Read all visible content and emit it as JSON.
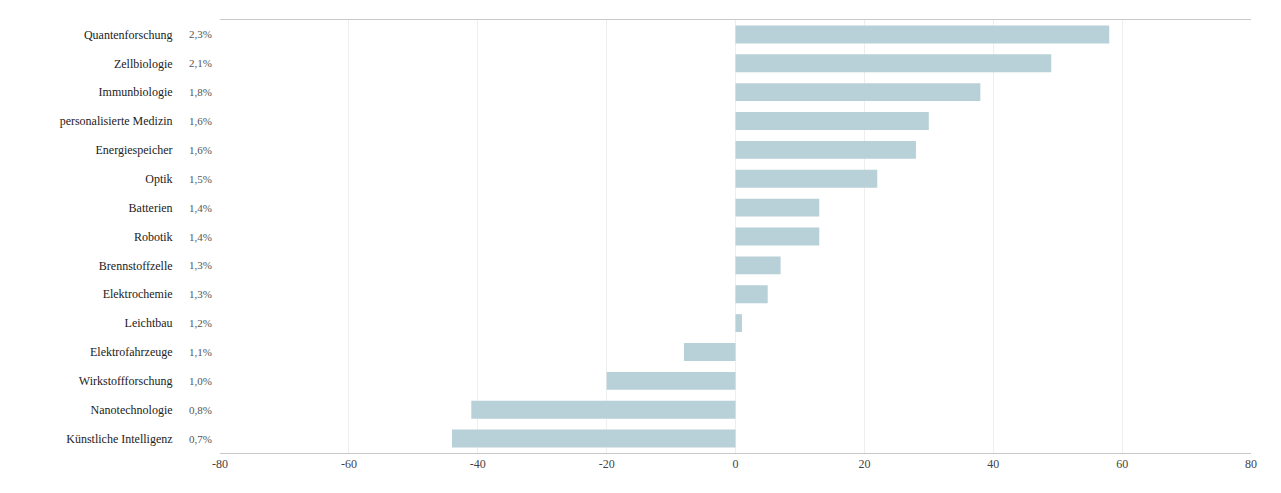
{
  "chart_data": {
    "type": "bar",
    "orientation": "horizontal",
    "categories": [
      "Quantenforschung",
      "Zellbiologie",
      "Immunbiologie",
      "personalisierte Medizin",
      "Energiespeicher",
      "Optik",
      "Batterien",
      "Robotik",
      "Brennstoffzelle",
      "Elektrochemie",
      "Leichtbau",
      "Elektrofahrzeuge",
      "Wirkstoffforschung",
      "Nanotechnologie",
      "Künstliche Intelligenz"
    ],
    "percentages": [
      "2,3%",
      "2,1%",
      "1,8%",
      "1,6%",
      "1,6%",
      "1,5%",
      "1,4%",
      "1,4%",
      "1,3%",
      "1,3%",
      "1,2%",
      "1,1%",
      "1,0%",
      "0,8%",
      "0,7%"
    ],
    "values": [
      58,
      49,
      38,
      30,
      28,
      22,
      13,
      13,
      7,
      5,
      1,
      -8,
      -20,
      -41,
      -44
    ],
    "color": "#b8d0d8",
    "xlim": [
      -80,
      80
    ],
    "xticks": [
      -80,
      -60,
      -40,
      -20,
      0,
      20,
      40,
      60,
      80
    ],
    "grid": true
  }
}
